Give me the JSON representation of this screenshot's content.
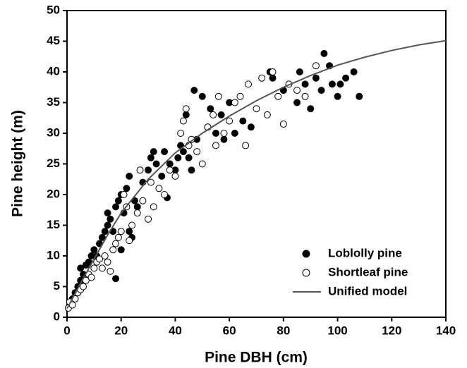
{
  "chart_data": {
    "type": "scatter",
    "x_label": "Pine DBH (cm)",
    "y_label": "Pine height (m)",
    "xlim": [
      0,
      140
    ],
    "xticks": [
      0,
      20,
      40,
      60,
      80,
      100,
      120,
      140
    ],
    "ylim": [
      0,
      50
    ],
    "yticks": [
      0,
      5,
      10,
      15,
      20,
      25,
      30,
      35,
      40,
      45,
      50
    ],
    "legend": "lower right",
    "series": [
      {
        "name": "Loblolly pine",
        "color": "#000000",
        "marker": "filled",
        "x": [
          1,
          2,
          3,
          4,
          5,
          5,
          6,
          7,
          8,
          9,
          10,
          11,
          12,
          13,
          14,
          15,
          15,
          16,
          17,
          18,
          18,
          19,
          20,
          20,
          21,
          22,
          23,
          23,
          24,
          25,
          26,
          28,
          30,
          31,
          32,
          33,
          35,
          36,
          37,
          38,
          40,
          41,
          42,
          43,
          44,
          45,
          46,
          47,
          48,
          50,
          52,
          53,
          55,
          57,
          58,
          60,
          62,
          65,
          68,
          75,
          76,
          80,
          85,
          86,
          88,
          90,
          92,
          94,
          95,
          97,
          98,
          100,
          101,
          103,
          106,
          108
        ],
        "values": [
          2,
          3,
          4,
          5,
          6,
          8,
          7,
          8.5,
          9,
          10,
          11,
          10,
          12,
          13,
          14,
          15,
          17,
          16,
          14,
          18,
          6.3,
          19,
          20,
          11,
          17,
          21,
          23,
          14,
          13,
          19,
          18,
          22,
          24,
          26,
          27,
          25,
          23,
          27,
          19.5,
          25,
          24,
          26,
          28,
          27,
          33,
          26,
          24,
          37,
          29,
          36,
          31,
          34,
          30,
          33,
          29,
          35,
          30,
          32,
          31,
          40,
          39,
          37,
          35,
          40,
          38,
          34,
          39,
          37,
          43,
          41,
          38,
          36,
          38,
          39,
          40,
          36
        ]
      },
      {
        "name": "Shortleaf pine",
        "color": "#000000",
        "marker": "open",
        "x": [
          0.5,
          1,
          2,
          3,
          4,
          5,
          6,
          7,
          8,
          9,
          10,
          11,
          12,
          13,
          14,
          15,
          16,
          17,
          18,
          19,
          20,
          21,
          22,
          23,
          24,
          26,
          27,
          28,
          30,
          31,
          32,
          34,
          36,
          38,
          40,
          42,
          43,
          44,
          45,
          46,
          48,
          50,
          52,
          54,
          55,
          56,
          58,
          60,
          62,
          64,
          66,
          67,
          70,
          72,
          74,
          76,
          78,
          80,
          82,
          85,
          88,
          92
        ],
        "values": [
          1.5,
          2.5,
          2,
          3,
          4,
          4.5,
          5,
          6,
          7,
          6.5,
          8,
          9,
          9.5,
          8,
          10,
          9,
          7.5,
          11,
          12,
          13,
          14,
          20,
          18,
          12.5,
          15,
          17,
          24,
          19,
          16,
          22,
          18,
          21,
          20,
          24,
          23,
          30,
          32,
          34,
          28,
          29,
          27,
          25,
          31,
          33,
          28,
          36,
          30,
          32,
          35,
          36,
          28,
          38,
          34,
          39,
          33,
          40,
          36,
          31.5,
          38,
          37,
          36,
          41
        ]
      },
      {
        "name": "Unified model",
        "color": "#555555",
        "marker": "line",
        "x": [
          0,
          5,
          10,
          15,
          20,
          30,
          40,
          50,
          60,
          70,
          80,
          90,
          100,
          110,
          120,
          130,
          140
        ],
        "values": [
          1.4,
          5.5,
          9.5,
          13.4,
          17,
          22.5,
          26.8,
          30,
          32.8,
          35.3,
          37.5,
          39.4,
          41.1,
          42.4,
          43.5,
          44.4,
          45.1
        ]
      }
    ]
  }
}
